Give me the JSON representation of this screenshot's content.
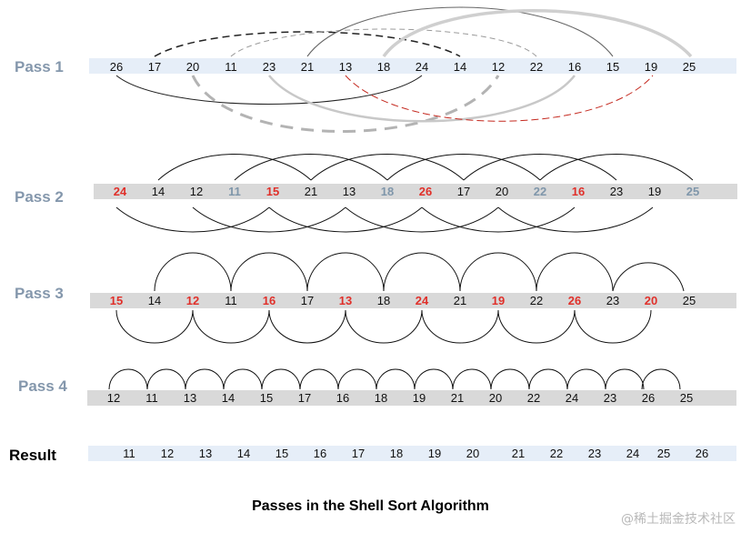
{
  "title": "Passes in the Shell Sort Algorithm",
  "watermark": "@稀土掘金技术社区",
  "colors": {
    "normal": "#111111",
    "highlight": "#e0302a",
    "faded": "#7f96aa"
  },
  "rows": [
    {
      "label": "Pass 1",
      "values": [
        "26",
        "17",
        "20",
        "11",
        "23",
        "21",
        "13",
        "18",
        "24",
        "14",
        "12",
        "22",
        "16",
        "15",
        "19",
        "25"
      ],
      "styles": [
        "n",
        "n",
        "n",
        "n",
        "n",
        "n",
        "n",
        "n",
        "n",
        "n",
        "n",
        "n",
        "n",
        "n",
        "n",
        "n"
      ]
    },
    {
      "label": "Pass 2",
      "values": [
        "24",
        "14",
        "12",
        "11",
        "15",
        "21",
        "13",
        "18",
        "26",
        "17",
        "20",
        "22",
        "16",
        "23",
        "19",
        "25"
      ],
      "styles": [
        "h",
        "n",
        "n",
        "f",
        "h",
        "n",
        "n",
        "f",
        "h",
        "n",
        "n",
        "f",
        "h",
        "n",
        "n",
        "f"
      ]
    },
    {
      "label": "Pass 3",
      "values": [
        "15",
        "14",
        "12",
        "11",
        "16",
        "17",
        "13",
        "18",
        "24",
        "21",
        "19",
        "22",
        "26",
        "23",
        "20",
        "25"
      ],
      "styles": [
        "h",
        "n",
        "h",
        "n",
        "h",
        "n",
        "h",
        "n",
        "h",
        "n",
        "h",
        "n",
        "h",
        "n",
        "h",
        "n"
      ]
    },
    {
      "label": "Pass 4",
      "values": [
        "12",
        "11",
        "13",
        "14",
        "15",
        "17",
        "16",
        "18",
        "19",
        "21",
        "20",
        "22",
        "24",
        "23",
        "26",
        "25"
      ],
      "styles": [
        "n",
        "n",
        "n",
        "n",
        "n",
        "n",
        "n",
        "n",
        "n",
        "n",
        "n",
        "n",
        "n",
        "n",
        "n",
        "n"
      ]
    },
    {
      "label": "Result",
      "values": [
        "11",
        "12",
        "13",
        "14",
        "15",
        "16",
        "17",
        "18",
        "19",
        "20",
        "21",
        "22",
        "23",
        "24",
        "25",
        "26"
      ],
      "styles": [
        "n",
        "n",
        "n",
        "n",
        "n",
        "n",
        "n",
        "n",
        "n",
        "n",
        "n",
        "n",
        "n",
        "n",
        "n",
        "n"
      ]
    }
  ]
}
